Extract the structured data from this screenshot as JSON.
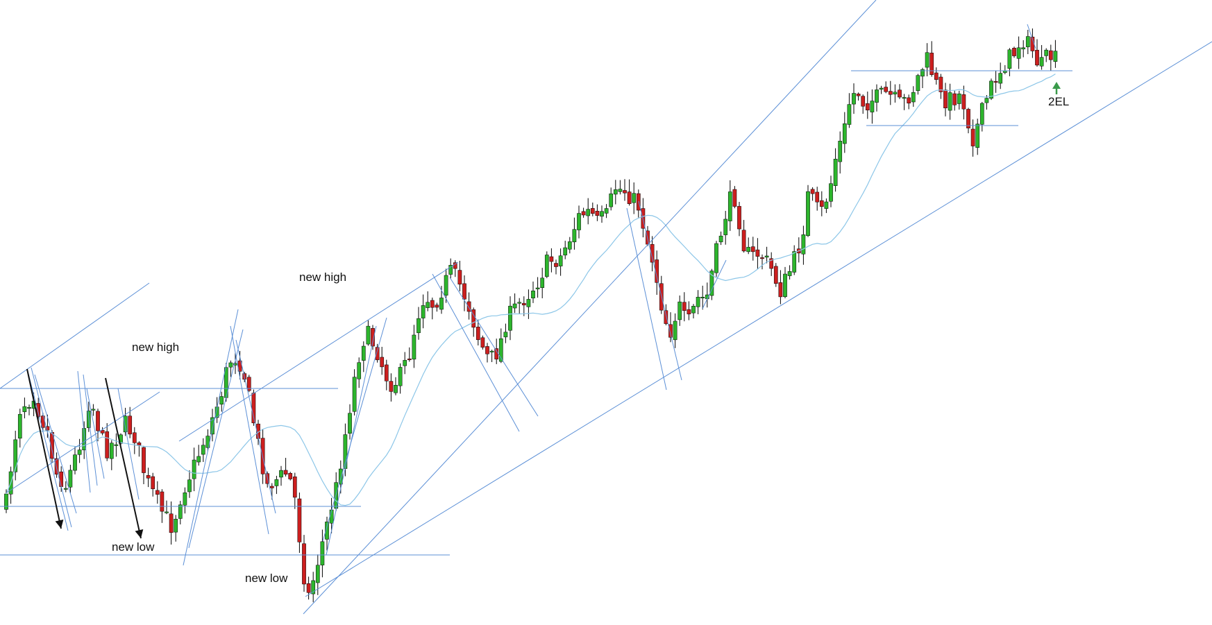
{
  "chart_data": {
    "type": "candlestick",
    "title": "",
    "xlabel": "",
    "ylabel": "",
    "grid": false,
    "legend": "none",
    "colors": {
      "up_body": "#2db52d",
      "down_body": "#cc1f1f",
      "wick": "#000000",
      "trendline": "#5b8fd6",
      "moving_average": "#8cc6e8",
      "arrow": "#111111",
      "entry_arrow": "#3a9a4a"
    },
    "annotations": [
      {
        "id": "new-high-1",
        "text": "new high"
      },
      {
        "id": "new-high-2",
        "text": "new high"
      },
      {
        "id": "new-low-1",
        "text": "new low"
      },
      {
        "id": "new-low-2",
        "text": "new low"
      },
      {
        "id": "entry-2el",
        "text": "2EL"
      }
    ]
  }
}
